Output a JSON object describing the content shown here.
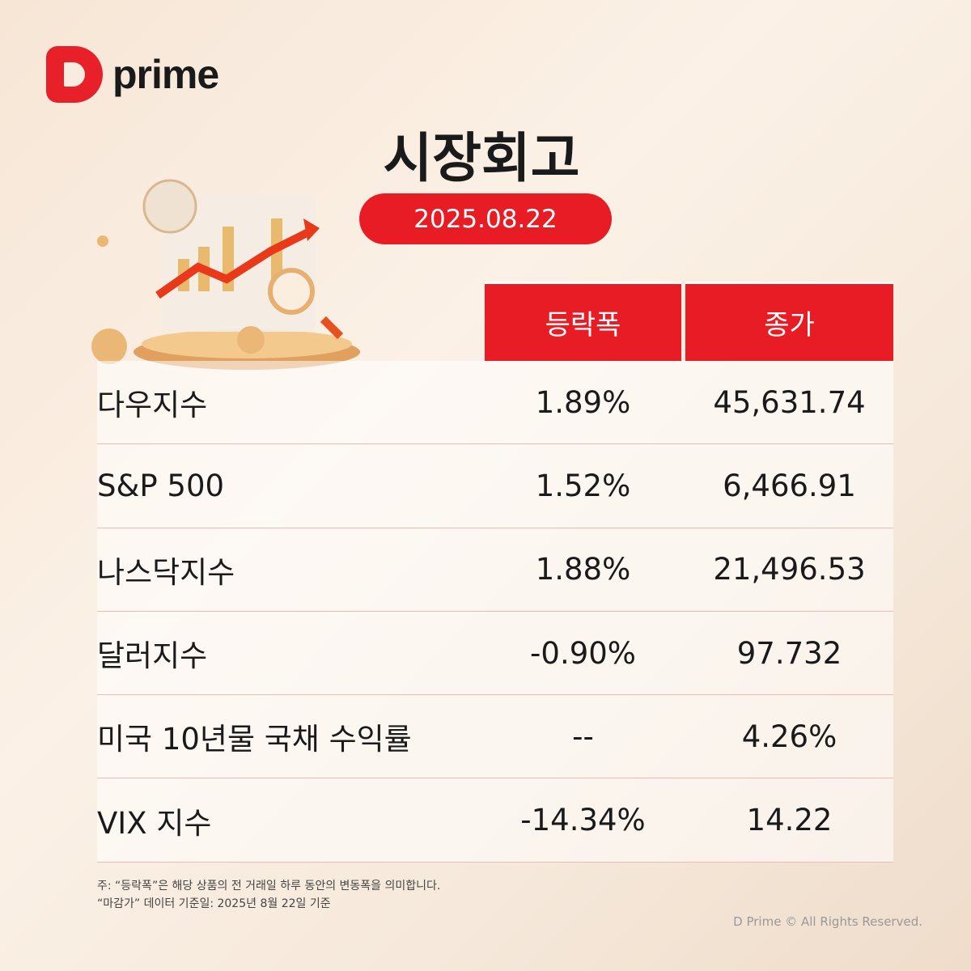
{
  "brand": {
    "name": "prime"
  },
  "title": "시장회고",
  "date": "2025.08.22",
  "table": {
    "headers": [
      "등락폭",
      "종가"
    ],
    "rows": [
      {
        "name": "다우지수",
        "change": "1.89%",
        "close": "45,631.74"
      },
      {
        "name": "S&P 500",
        "change": "1.52%",
        "close": "6,466.91"
      },
      {
        "name": "나스닥지수",
        "change": "1.88%",
        "close": "21,496.53"
      },
      {
        "name": "달러지수",
        "change": "-0.90%",
        "close": "97.732"
      },
      {
        "name": "미국 10년물 국채 수익률",
        "change": "--",
        "close": "4.26%"
      },
      {
        "name": "VIX 지수",
        "change": "-14.34%",
        "close": "14.22"
      }
    ]
  },
  "notes": [
    "주: “등락폭”은 해당 상품의 전 거래일 하루 동안의 변동폭을 의미합니다.",
    "“마감가” 데이터 기준일: 2025년 8월 22일 기준"
  ],
  "copyright": "D Prime © All Rights Reserved.",
  "colors": {
    "accent": "#e81c24"
  }
}
